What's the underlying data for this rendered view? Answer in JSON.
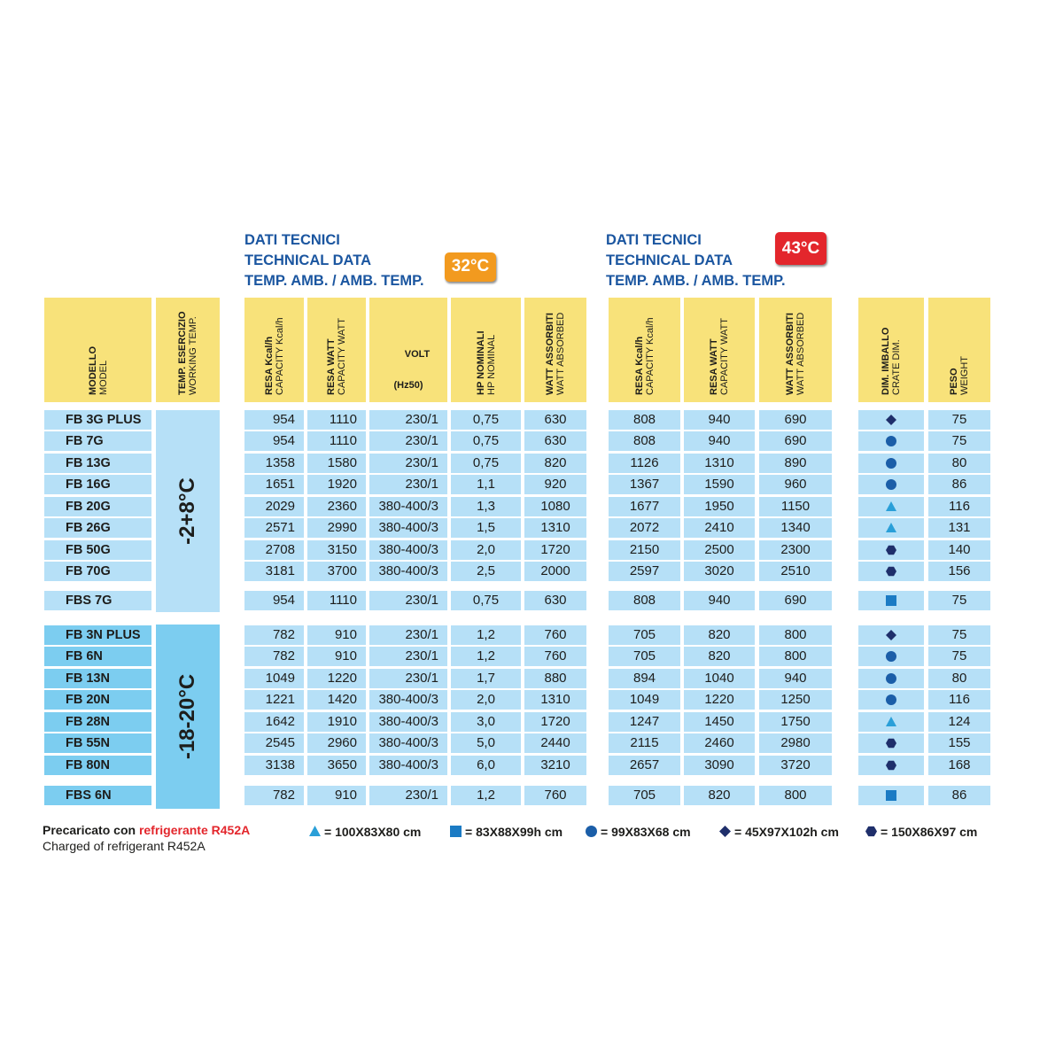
{
  "section_32": {
    "title_line1": "DATI TECNICI",
    "title_line2": "TECHNICAL DATA",
    "title_line3": "TEMP. AMB. / AMB. TEMP.",
    "badge": "32°C",
    "badge_color": "#f29a1f"
  },
  "section_43": {
    "title_line1": "DATI TECNICI",
    "title_line2": "TECHNICAL DATA",
    "title_line3": "TEMP. AMB. / AMB. TEMP.",
    "badge": "43°C",
    "badge_color": "#e3262c"
  },
  "colors": {
    "header_yellow": "#f8e27a",
    "light_blue": "#b6e0f7",
    "mid_blue": "#7ccdf0",
    "text": "#1d1d1b",
    "title_blue": "#1b56a0"
  },
  "headers": {
    "model": {
      "main": "MODELLO",
      "sub": "MODEL"
    },
    "working_temp": {
      "main": "TEMP. ESERCIZIO",
      "sub": "WORKING TEMP."
    },
    "resa_kcal": {
      "main": "RESA Kcal/h",
      "sub": "CAPACITY Kcal/h"
    },
    "resa_watt": {
      "main": "RESA WATT",
      "sub": "CAPACITY WATT"
    },
    "volt": {
      "main": "VOLT",
      "sub": "(Hz50)"
    },
    "hp": {
      "main": "HP NOMINALI",
      "sub": "HP NOMINAL"
    },
    "watt_abs": {
      "main": "WATT ASSORBITI",
      "sub": "WATT ABSORBED"
    },
    "resa_kcal_43": {
      "main": "RESA Kcal/h",
      "sub": "CAPACITY Kcal/h"
    },
    "resa_watt_43": {
      "main": "RESA WATT",
      "sub": "CAPACITY WATT"
    },
    "watt_abs_43": {
      "main": "WATT ASSORBITI",
      "sub": "WATT ABSORBED"
    },
    "crate": {
      "main": "DIM. IMBALLO",
      "sub": "CRATE DIM."
    },
    "weight": {
      "main": "PESO",
      "sub": "WEIGHT"
    }
  },
  "group1": {
    "temp": "-2+8°C"
  },
  "group2": {
    "temp": "-18-20°C"
  },
  "rows": [
    {
      "model": "FB 3G PLUS",
      "kcal": "954",
      "watt": "1110",
      "volt": "230/1",
      "hp": "0,75",
      "wabs": "630",
      "kcal43": "808",
      "watt43": "940",
      "wabs43": "690",
      "crate": "diamond",
      "weight": "75"
    },
    {
      "model": "FB 7G",
      "kcal": "954",
      "watt": "1110",
      "volt": "230/1",
      "hp": "0,75",
      "wabs": "630",
      "kcal43": "808",
      "watt43": "940",
      "wabs43": "690",
      "crate": "circle",
      "weight": "75"
    },
    {
      "model": "FB 13G",
      "kcal": "1358",
      "watt": "1580",
      "volt": "230/1",
      "hp": "0,75",
      "wabs": "820",
      "kcal43": "1126",
      "watt43": "1310",
      "wabs43": "890",
      "crate": "circle",
      "weight": "80"
    },
    {
      "model": "FB 16G",
      "kcal": "1651",
      "watt": "1920",
      "volt": "230/1",
      "hp": "1,1",
      "wabs": "920",
      "kcal43": "1367",
      "watt43": "1590",
      "wabs43": "960",
      "crate": "circle",
      "weight": "86"
    },
    {
      "model": "FB 20G",
      "kcal": "2029",
      "watt": "2360",
      "volt": "380-400/3",
      "hp": "1,3",
      "wabs": "1080",
      "kcal43": "1677",
      "watt43": "1950",
      "wabs43": "1150",
      "crate": "triangle",
      "weight": "116"
    },
    {
      "model": "FB 26G",
      "kcal": "2571",
      "watt": "2990",
      "volt": "380-400/3",
      "hp": "1,5",
      "wabs": "1310",
      "kcal43": "2072",
      "watt43": "2410",
      "wabs43": "1340",
      "crate": "triangle",
      "weight": "131"
    },
    {
      "model": "FB 50G",
      "kcal": "2708",
      "watt": "3150",
      "volt": "380-400/3",
      "hp": "2,0",
      "wabs": "1720",
      "kcal43": "2150",
      "watt43": "2500",
      "wabs43": "2300",
      "crate": "hexagon",
      "weight": "140"
    },
    {
      "model": "FB 70G",
      "kcal": "3181",
      "watt": "3700",
      "volt": "380-400/3",
      "hp": "2,5",
      "wabs": "2000",
      "kcal43": "2597",
      "watt43": "3020",
      "wabs43": "2510",
      "crate": "hexagon",
      "weight": "156"
    },
    {
      "model": "FBS 7G",
      "kcal": "954",
      "watt": "1110",
      "volt": "230/1",
      "hp": "0,75",
      "wabs": "630",
      "kcal43": "808",
      "watt43": "940",
      "wabs43": "690",
      "crate": "square",
      "weight": "75"
    },
    {
      "model": "FB 3N PLUS",
      "kcal": "782",
      "watt": "910",
      "volt": "230/1",
      "hp": "1,2",
      "wabs": "760",
      "kcal43": "705",
      "watt43": "820",
      "wabs43": "800",
      "crate": "diamond",
      "weight": "75"
    },
    {
      "model": "FB 6N",
      "kcal": "782",
      "watt": "910",
      "volt": "230/1",
      "hp": "1,2",
      "wabs": "760",
      "kcal43": "705",
      "watt43": "820",
      "wabs43": "800",
      "crate": "circle",
      "weight": "75"
    },
    {
      "model": "FB 13N",
      "kcal": "1049",
      "watt": "1220",
      "volt": "230/1",
      "hp": "1,7",
      "wabs": "880",
      "kcal43": "894",
      "watt43": "1040",
      "wabs43": "940",
      "crate": "circle",
      "weight": "80"
    },
    {
      "model": "FB 20N",
      "kcal": "1221",
      "watt": "1420",
      "volt": "380-400/3",
      "hp": "2,0",
      "wabs": "1310",
      "kcal43": "1049",
      "watt43": "1220",
      "wabs43": "1250",
      "crate": "circle",
      "weight": "116"
    },
    {
      "model": "FB 28N",
      "kcal": "1642",
      "watt": "1910",
      "volt": "380-400/3",
      "hp": "3,0",
      "wabs": "1720",
      "kcal43": "1247",
      "watt43": "1450",
      "wabs43": "1750",
      "crate": "triangle",
      "weight": "124"
    },
    {
      "model": "FB 55N",
      "kcal": "2545",
      "watt": "2960",
      "volt": "380-400/3",
      "hp": "5,0",
      "wabs": "2440",
      "kcal43": "2115",
      "watt43": "2460",
      "wabs43": "2980",
      "crate": "hexagon",
      "weight": "155"
    },
    {
      "model": "FB 80N",
      "kcal": "3138",
      "watt": "3650",
      "volt": "380-400/3",
      "hp": "6,0",
      "wabs": "3210",
      "kcal43": "2657",
      "watt43": "3090",
      "wabs43": "3720",
      "crate": "hexagon",
      "weight": "168"
    },
    {
      "model": "FBS 6N",
      "kcal": "782",
      "watt": "910",
      "volt": "230/1",
      "hp": "1,2",
      "wabs": "760",
      "kcal43": "705",
      "watt43": "820",
      "wabs43": "800",
      "crate": "square",
      "weight": "86"
    }
  ],
  "footer": {
    "line1_prefix": "Precaricato con ",
    "line1_highlight": "refrigerante R452A",
    "line2": "Charged of refrigerant R452A"
  },
  "legend": [
    {
      "shape": "triangle",
      "color": "#2a9fd8",
      "text": "= 100X83X80 cm"
    },
    {
      "shape": "square",
      "color": "#1b7bc4",
      "text": "= 83X88X99h cm"
    },
    {
      "shape": "circle",
      "color": "#1b5ea8",
      "text": "= 99X83X68 cm"
    },
    {
      "shape": "diamond",
      "color": "#1f2f6b",
      "text": "= 45X97X102h cm"
    },
    {
      "shape": "hexagon",
      "color": "#1f2f6b",
      "text": "= 150X86X97 cm"
    }
  ]
}
